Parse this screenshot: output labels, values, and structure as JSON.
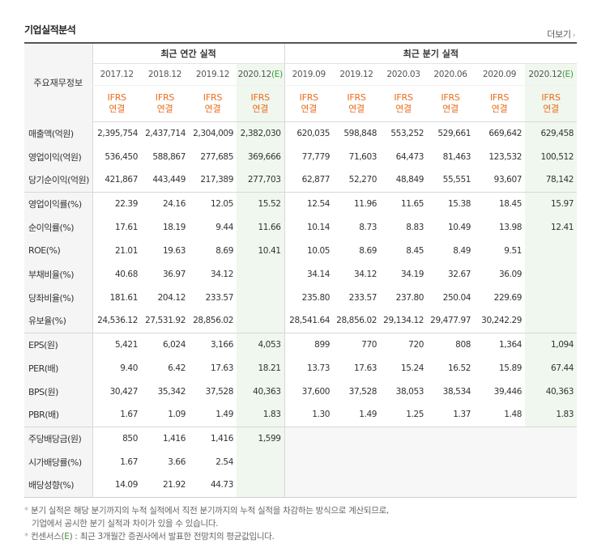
{
  "title": "기업실적분석",
  "more_label": "더보기",
  "side_header": "주요재무정보",
  "groups": {
    "annual": "최근 연간 실적",
    "quarterly": "최근 분기 실적"
  },
  "periods": [
    {
      "label": "2017.12",
      "est": ""
    },
    {
      "label": "2018.12",
      "est": ""
    },
    {
      "label": "2019.12",
      "est": ""
    },
    {
      "label": "2020.12",
      "est": "(E)"
    },
    {
      "label": "2019.09",
      "est": ""
    },
    {
      "label": "2019.12",
      "est": ""
    },
    {
      "label": "2020.03",
      "est": ""
    },
    {
      "label": "2020.06",
      "est": ""
    },
    {
      "label": "2020.09",
      "est": ""
    },
    {
      "label": "2020.12",
      "est": "(E)"
    }
  ],
  "ifrs": {
    "line1": "IFRS",
    "line2": "연결"
  },
  "rows": [
    {
      "label": "매출액(억원)",
      "values": [
        "2,395,754",
        "2,437,714",
        "2,304,009",
        "2,382,030",
        "620,035",
        "598,848",
        "553,252",
        "529,661",
        "669,642",
        "629,458"
      ]
    },
    {
      "label": "영업이익(억원)",
      "values": [
        "536,450",
        "588,867",
        "277,685",
        "369,666",
        "77,779",
        "71,603",
        "64,473",
        "81,463",
        "123,532",
        "100,512"
      ]
    },
    {
      "label": "당기순이익(억원)",
      "values": [
        "421,867",
        "443,449",
        "217,389",
        "277,703",
        "62,877",
        "52,270",
        "48,849",
        "55,551",
        "93,607",
        "78,142"
      ]
    },
    {
      "label": "영업이익률(%)",
      "values": [
        "22.39",
        "24.16",
        "12.05",
        "15.52",
        "12.54",
        "11.96",
        "11.65",
        "15.38",
        "18.45",
        "15.97"
      ]
    },
    {
      "label": "순이익률(%)",
      "values": [
        "17.61",
        "18.19",
        "9.44",
        "11.66",
        "10.14",
        "8.73",
        "8.83",
        "10.49",
        "13.98",
        "12.41"
      ]
    },
    {
      "label": "ROE(%)",
      "values": [
        "21.01",
        "19.63",
        "8.69",
        "10.41",
        "10.05",
        "8.69",
        "8.45",
        "8.49",
        "9.51",
        ""
      ]
    },
    {
      "label": "부채비율(%)",
      "values": [
        "40.68",
        "36.97",
        "34.12",
        "",
        "34.14",
        "34.12",
        "34.19",
        "32.67",
        "36.09",
        ""
      ]
    },
    {
      "label": "당좌비율(%)",
      "values": [
        "181.61",
        "204.12",
        "233.57",
        "",
        "235.80",
        "233.57",
        "237.80",
        "250.04",
        "229.69",
        ""
      ]
    },
    {
      "label": "유보율(%)",
      "values": [
        "24,536.12",
        "27,531.92",
        "28,856.02",
        "",
        "28,541.64",
        "28,856.02",
        "29,134.12",
        "29,477.97",
        "30,242.29",
        ""
      ]
    },
    {
      "label": "EPS(원)",
      "values": [
        "5,421",
        "6,024",
        "3,166",
        "4,053",
        "899",
        "770",
        "720",
        "808",
        "1,364",
        "1,094"
      ]
    },
    {
      "label": "PER(배)",
      "values": [
        "9.40",
        "6.42",
        "17.63",
        "18.21",
        "13.73",
        "17.63",
        "15.24",
        "16.52",
        "15.89",
        "67.44"
      ]
    },
    {
      "label": "BPS(원)",
      "values": [
        "30,427",
        "35,342",
        "37,528",
        "40,363",
        "37,600",
        "37,528",
        "38,053",
        "38,534",
        "39,446",
        "40,363"
      ]
    },
    {
      "label": "PBR(배)",
      "values": [
        "1.67",
        "1.09",
        "1.49",
        "1.83",
        "1.30",
        "1.49",
        "1.25",
        "1.37",
        "1.48",
        "1.83"
      ]
    },
    {
      "label": "주당배당금(원)",
      "values": [
        "850",
        "1,416",
        "1,416",
        "1,599",
        "",
        "",
        "",
        "",
        "",
        ""
      ]
    },
    {
      "label": "시가배당률(%)",
      "values": [
        "1.67",
        "3.66",
        "2.54",
        "",
        "",
        "",
        "",
        "",
        "",
        ""
      ]
    },
    {
      "label": "배당성향(%)",
      "values": [
        "14.09",
        "21.92",
        "44.73",
        "",
        "",
        "",
        "",
        "",
        "",
        ""
      ]
    }
  ],
  "notes": {
    "line1": "분기 실적은 해당 분기까지의 누적 실적에서 직전 분기까지의 누적 실적을 차감하는 방식으로 계산되므로,",
    "line2": "기업에서 공시한 분기 실적과 차이가 있을 수 있습니다.",
    "line3_prefix": "컨센서스(",
    "line3_e": "E",
    "line3_suffix": ") : 최근 3개월간 증권사에서 발표한 전망치의 평균값입니다."
  }
}
